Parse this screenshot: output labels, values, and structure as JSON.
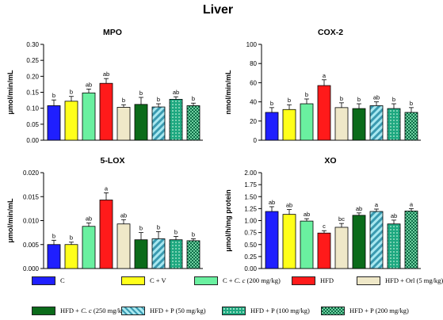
{
  "figure_title": "Liver",
  "chart_data": [
    {
      "type": "bar",
      "title": "MPO",
      "ylabel": "μmol/min/mL",
      "ylim": [
        0,
        0.3
      ],
      "yticks": [
        "0.00",
        "0.05",
        "0.10",
        "0.15",
        "0.20",
        "0.25",
        "0.30"
      ],
      "categories": [
        "C",
        "C + V",
        "C + C. c (200 mg/kg)",
        "HFD",
        "HFD + Orl (5 mg/kg)",
        "HFD + C. c (250 mg/kg)",
        "HFD + P (50 mg/kg)",
        "HFD + P (100 mg/kg)",
        "HFD + P (200 mg/kg)"
      ],
      "values": [
        0.108,
        0.122,
        0.148,
        0.178,
        0.103,
        0.112,
        0.104,
        0.128,
        0.108
      ],
      "errors": [
        0.018,
        0.015,
        0.012,
        0.015,
        0.008,
        0.022,
        0.01,
        0.008,
        0.008
      ],
      "significance": [
        "b",
        "b",
        "ab",
        "ab",
        "b",
        "b",
        "b",
        "ab",
        "b"
      ]
    },
    {
      "type": "bar",
      "title": "COX-2",
      "ylabel": "nmol/min/mL",
      "ylim": [
        0,
        100
      ],
      "yticks": [
        "0",
        "20",
        "40",
        "60",
        "80",
        "100"
      ],
      "categories": [
        "C",
        "C + V",
        "C + C. c (200 mg/kg)",
        "HFD",
        "HFD + Orl (5 mg/kg)",
        "HFD + C. c (250 mg/kg)",
        "HFD + P (50 mg/kg)",
        "HFD + P (100 mg/kg)",
        "HFD + P (200 mg/kg)"
      ],
      "values": [
        29,
        32,
        38,
        57,
        34,
        33,
        36,
        33,
        29
      ],
      "errors": [
        5,
        5,
        5,
        6,
        5,
        5,
        4,
        5,
        5
      ],
      "significance": [
        "b",
        "b",
        "b",
        "a",
        "b",
        "b",
        "ab",
        "b",
        "b"
      ]
    },
    {
      "type": "bar",
      "title": "5-LOX",
      "ylabel": "μmol/min/mL",
      "ylim": [
        0,
        0.02
      ],
      "yticks": [
        "0.000",
        "0.005",
        "0.010",
        "0.015",
        "0.020"
      ],
      "categories": [
        "C",
        "C + V",
        "C + C. c (200 mg/kg)",
        "HFD",
        "HFD + Orl (5 mg/kg)",
        "HFD + C. c (250 mg/kg)",
        "HFD + P (50 mg/kg)",
        "HFD + P (100 mg/kg)",
        "HFD + P (200 mg/kg)"
      ],
      "values": [
        0.005,
        0.005,
        0.0088,
        0.0143,
        0.0093,
        0.006,
        0.0062,
        0.006,
        0.0058
      ],
      "errors": [
        0.0009,
        0.0005,
        0.0007,
        0.0015,
        0.0009,
        0.0015,
        0.0015,
        0.0007,
        0.0004
      ],
      "significance": [
        "b",
        "b",
        "ab",
        "a",
        "ab",
        "b",
        "b",
        "b",
        "b"
      ]
    },
    {
      "type": "bar",
      "title": "XO",
      "ylabel": "μmol/h/mg protein",
      "ylim": [
        0,
        2.0
      ],
      "yticks": [
        "0.00",
        "0.25",
        "0.50",
        "0.75",
        "1.00",
        "1.25",
        "1.50",
        "1.75",
        "2.00"
      ],
      "categories": [
        "C",
        "C + V",
        "C + C. c (200 mg/kg)",
        "HFD",
        "HFD + Orl (5 mg/kg)",
        "HFD + C. c (250 mg/kg)",
        "HFD + P (50 mg/kg)",
        "HFD + P (100 mg/kg)",
        "HFD + P (200 mg/kg)"
      ],
      "values": [
        1.19,
        1.13,
        0.99,
        0.74,
        0.86,
        1.11,
        1.19,
        0.93,
        1.2
      ],
      "errors": [
        0.1,
        0.1,
        0.05,
        0.05,
        0.08,
        0.05,
        0.05,
        0.08,
        0.05
      ],
      "significance": [
        "ab",
        "ab",
        "ab",
        "c",
        "bc",
        "ab",
        "a",
        "ab",
        "a"
      ]
    }
  ],
  "legend": [
    {
      "pre": "C",
      "italic": "",
      "post": "",
      "color": "#1f1fff",
      "pattern": "solid"
    },
    {
      "pre": "C + V",
      "italic": "",
      "post": "",
      "color": "#ffff1a",
      "pattern": "solid"
    },
    {
      "pre": "C + ",
      "italic": "C. c",
      "post": " (200 mg/kg)",
      "color": "#6af0a0",
      "pattern": "solid"
    },
    {
      "pre": "HFD",
      "italic": "",
      "post": "",
      "color": "#ff1a1a",
      "pattern": "solid"
    },
    {
      "pre": "HFD + Orl (5 mg/kg)",
      "italic": "",
      "post": "",
      "color": "#efe8c8",
      "pattern": "solid"
    },
    {
      "pre": "HFD + ",
      "italic": "C. c",
      "post": " (250 mg/kg)",
      "color": "#0b6b1a",
      "pattern": "solid"
    },
    {
      "pre": "HFD + P (50 mg/kg)",
      "italic": "",
      "post": "",
      "color": "#a8e8f0",
      "pattern": "stripes"
    },
    {
      "pre": "HFD + P (100 mg/kg)",
      "italic": "",
      "post": "",
      "color": "#1ea880",
      "pattern": "dots"
    },
    {
      "pre": "HFD + P (200 mg/kg)",
      "italic": "",
      "post": "",
      "color": "#0e6e48",
      "pattern": "checker"
    }
  ]
}
